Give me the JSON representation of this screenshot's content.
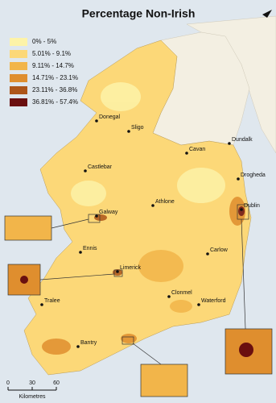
{
  "title": "Percentage Non-Irish",
  "legend": {
    "items": [
      {
        "label": "0% - 5%",
        "color": "#fdf3a8"
      },
      {
        "label": "5.01% - 9.1%",
        "color": "#fcd878"
      },
      {
        "label": "9.11% - 14.7%",
        "color": "#f2b54a"
      },
      {
        "label": "14.71% - 23.1%",
        "color": "#df8e2e"
      },
      {
        "label": "23.11% - 36.8%",
        "color": "#ad5519"
      },
      {
        "label": "36.81% - 57.4%",
        "color": "#6a0f0f"
      }
    ]
  },
  "towns": [
    "Donegal",
    "Sligo",
    "Cavan",
    "Dundalk",
    "Castlebar",
    "Drogheda",
    "Athlone",
    "Dublin",
    "Galway",
    "Carlow",
    "Ennis",
    "Limerick",
    "Tralee",
    "Clonmel",
    "Waterford",
    "Bantry"
  ],
  "scale": {
    "ticks": [
      0,
      30,
      60
    ],
    "unit": "Kilometres"
  }
}
